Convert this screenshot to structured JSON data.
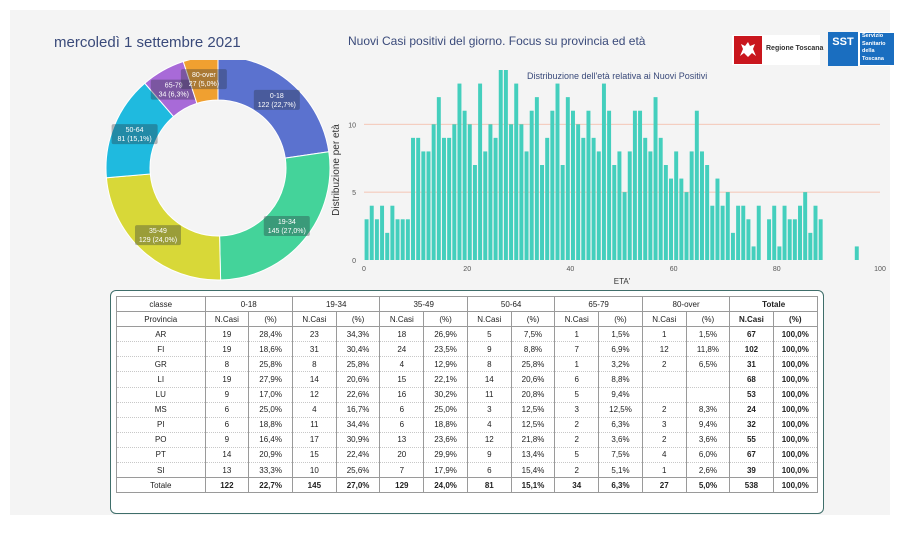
{
  "header": {
    "date": "mercoledì 1 settembre 2021",
    "title": "Nuovi Casi positivi del giorno. Focus su provincia ed età",
    "logo_rt_text": "Regione Toscana",
    "logo_sst_mark": "SST",
    "logo_sst_lines": [
      "Servizio",
      "Sanitario",
      "della",
      "Toscana"
    ]
  },
  "colors": {
    "donut": [
      "#5b72cf",
      "#44d39a",
      "#d8d838",
      "#1fbadf",
      "#a86ad8",
      "#f0a030"
    ],
    "bars": "#44cfbd",
    "grid": "#f4b6a0",
    "text": "#3a4a7a"
  },
  "chart_data": [
    {
      "type": "pie",
      "donut": true,
      "categories": [
        "0-18",
        "19-34",
        "35-49",
        "50-64",
        "65-79",
        "80-over"
      ],
      "values": [
        122,
        145,
        129,
        81,
        34,
        27
      ],
      "labels": [
        "122 (22,7%)",
        "145 (27,0%)",
        "129 (24,0%)",
        "81 (15,1%)",
        "34 (6,3%)",
        "27 (5,0%)"
      ]
    },
    {
      "type": "bar",
      "title": "Distribuzione dell'età relativa ai Nuovi Positivi",
      "xlabel": "ETA'",
      "ylabel": "Distribuzione per età",
      "xlim": [
        0,
        100
      ],
      "ylim": [
        0,
        14
      ],
      "xticks": [
        0,
        20,
        40,
        60,
        80,
        100
      ],
      "yticks": [
        0,
        5,
        10
      ],
      "x": [
        0,
        1,
        2,
        3,
        4,
        5,
        6,
        7,
        8,
        9,
        10,
        11,
        12,
        13,
        14,
        15,
        16,
        17,
        18,
        19,
        20,
        21,
        22,
        23,
        24,
        25,
        26,
        27,
        28,
        29,
        30,
        31,
        32,
        33,
        34,
        35,
        36,
        37,
        38,
        39,
        40,
        41,
        42,
        43,
        44,
        45,
        46,
        47,
        48,
        49,
        50,
        51,
        52,
        53,
        54,
        55,
        56,
        57,
        58,
        59,
        60,
        61,
        62,
        63,
        64,
        65,
        66,
        67,
        68,
        69,
        70,
        71,
        72,
        73,
        74,
        75,
        76,
        77,
        78,
        79,
        80,
        81,
        82,
        83,
        84,
        85,
        86,
        87,
        88,
        89,
        90,
        91,
        92,
        93,
        94,
        95,
        96,
        97,
        98
      ],
      "values": [
        3,
        4,
        3,
        4,
        2,
        4,
        3,
        3,
        3,
        9,
        9,
        8,
        8,
        10,
        12,
        9,
        9,
        10,
        13,
        11,
        10,
        7,
        13,
        8,
        10,
        9,
        14,
        14,
        10,
        13,
        10,
        8,
        11,
        12,
        7,
        9,
        11,
        13,
        7,
        12,
        11,
        10,
        9,
        11,
        9,
        8,
        13,
        11,
        7,
        8,
        5,
        8,
        11,
        11,
        9,
        8,
        12,
        9,
        7,
        6,
        8,
        6,
        5,
        8,
        11,
        8,
        7,
        4,
        6,
        4,
        5,
        2,
        4,
        4,
        3,
        1,
        4,
        0,
        3,
        4,
        1,
        4,
        3,
        3,
        4,
        5,
        2,
        4,
        3,
        0,
        0,
        0,
        0,
        0,
        0,
        1,
        0,
        0,
        0
      ]
    }
  ],
  "table": {
    "group_header": {
      "label": "classe",
      "groups": [
        "0-18",
        "19-34",
        "35-49",
        "50-64",
        "65-79",
        "80-over"
      ],
      "total": "Totale"
    },
    "sub_header": {
      "label": "Provincia",
      "ncasi": "N.Casi",
      "pct": "(%)"
    },
    "rows": [
      {
        "name": "AR",
        "cells": [
          "19",
          "28,4%",
          "23",
          "34,3%",
          "18",
          "26,9%",
          "5",
          "7,5%",
          "1",
          "1,5%",
          "1",
          "1,5%"
        ],
        "tot": "67",
        "totp": "100,0%"
      },
      {
        "name": "FI",
        "cells": [
          "19",
          "18,6%",
          "31",
          "30,4%",
          "24",
          "23,5%",
          "9",
          "8,8%",
          "7",
          "6,9%",
          "12",
          "11,8%"
        ],
        "tot": "102",
        "totp": "100,0%"
      },
      {
        "name": "GR",
        "cells": [
          "8",
          "25,8%",
          "8",
          "25,8%",
          "4",
          "12,9%",
          "8",
          "25,8%",
          "1",
          "3,2%",
          "2",
          "6,5%"
        ],
        "tot": "31",
        "totp": "100,0%"
      },
      {
        "name": "LI",
        "cells": [
          "19",
          "27,9%",
          "14",
          "20,6%",
          "15",
          "22,1%",
          "14",
          "20,6%",
          "6",
          "8,8%",
          "",
          ""
        ],
        "tot": "68",
        "totp": "100,0%"
      },
      {
        "name": "LU",
        "cells": [
          "9",
          "17,0%",
          "12",
          "22,6%",
          "16",
          "30,2%",
          "11",
          "20,8%",
          "5",
          "9,4%",
          "",
          ""
        ],
        "tot": "53",
        "totp": "100,0%"
      },
      {
        "name": "MS",
        "cells": [
          "6",
          "25,0%",
          "4",
          "16,7%",
          "6",
          "25,0%",
          "3",
          "12,5%",
          "3",
          "12,5%",
          "2",
          "8,3%"
        ],
        "tot": "24",
        "totp": "100,0%"
      },
      {
        "name": "PI",
        "cells": [
          "6",
          "18,8%",
          "11",
          "34,4%",
          "6",
          "18,8%",
          "4",
          "12,5%",
          "2",
          "6,3%",
          "3",
          "9,4%"
        ],
        "tot": "32",
        "totp": "100,0%"
      },
      {
        "name": "PO",
        "cells": [
          "9",
          "16,4%",
          "17",
          "30,9%",
          "13",
          "23,6%",
          "12",
          "21,8%",
          "2",
          "3,6%",
          "2",
          "3,6%"
        ],
        "tot": "55",
        "totp": "100,0%"
      },
      {
        "name": "PT",
        "cells": [
          "14",
          "20,9%",
          "15",
          "22,4%",
          "20",
          "29,9%",
          "9",
          "13,4%",
          "5",
          "7,5%",
          "4",
          "6,0%"
        ],
        "tot": "67",
        "totp": "100,0%"
      },
      {
        "name": "SI",
        "cells": [
          "13",
          "33,3%",
          "10",
          "25,6%",
          "7",
          "17,9%",
          "6",
          "15,4%",
          "2",
          "5,1%",
          "1",
          "2,6%"
        ],
        "tot": "39",
        "totp": "100,0%"
      }
    ],
    "total_row": {
      "name": "Totale",
      "cells": [
        "122",
        "22,7%",
        "145",
        "27,0%",
        "129",
        "24,0%",
        "81",
        "15,1%",
        "34",
        "6,3%",
        "27",
        "5,0%"
      ],
      "tot": "538",
      "totp": "100,0%"
    }
  }
}
